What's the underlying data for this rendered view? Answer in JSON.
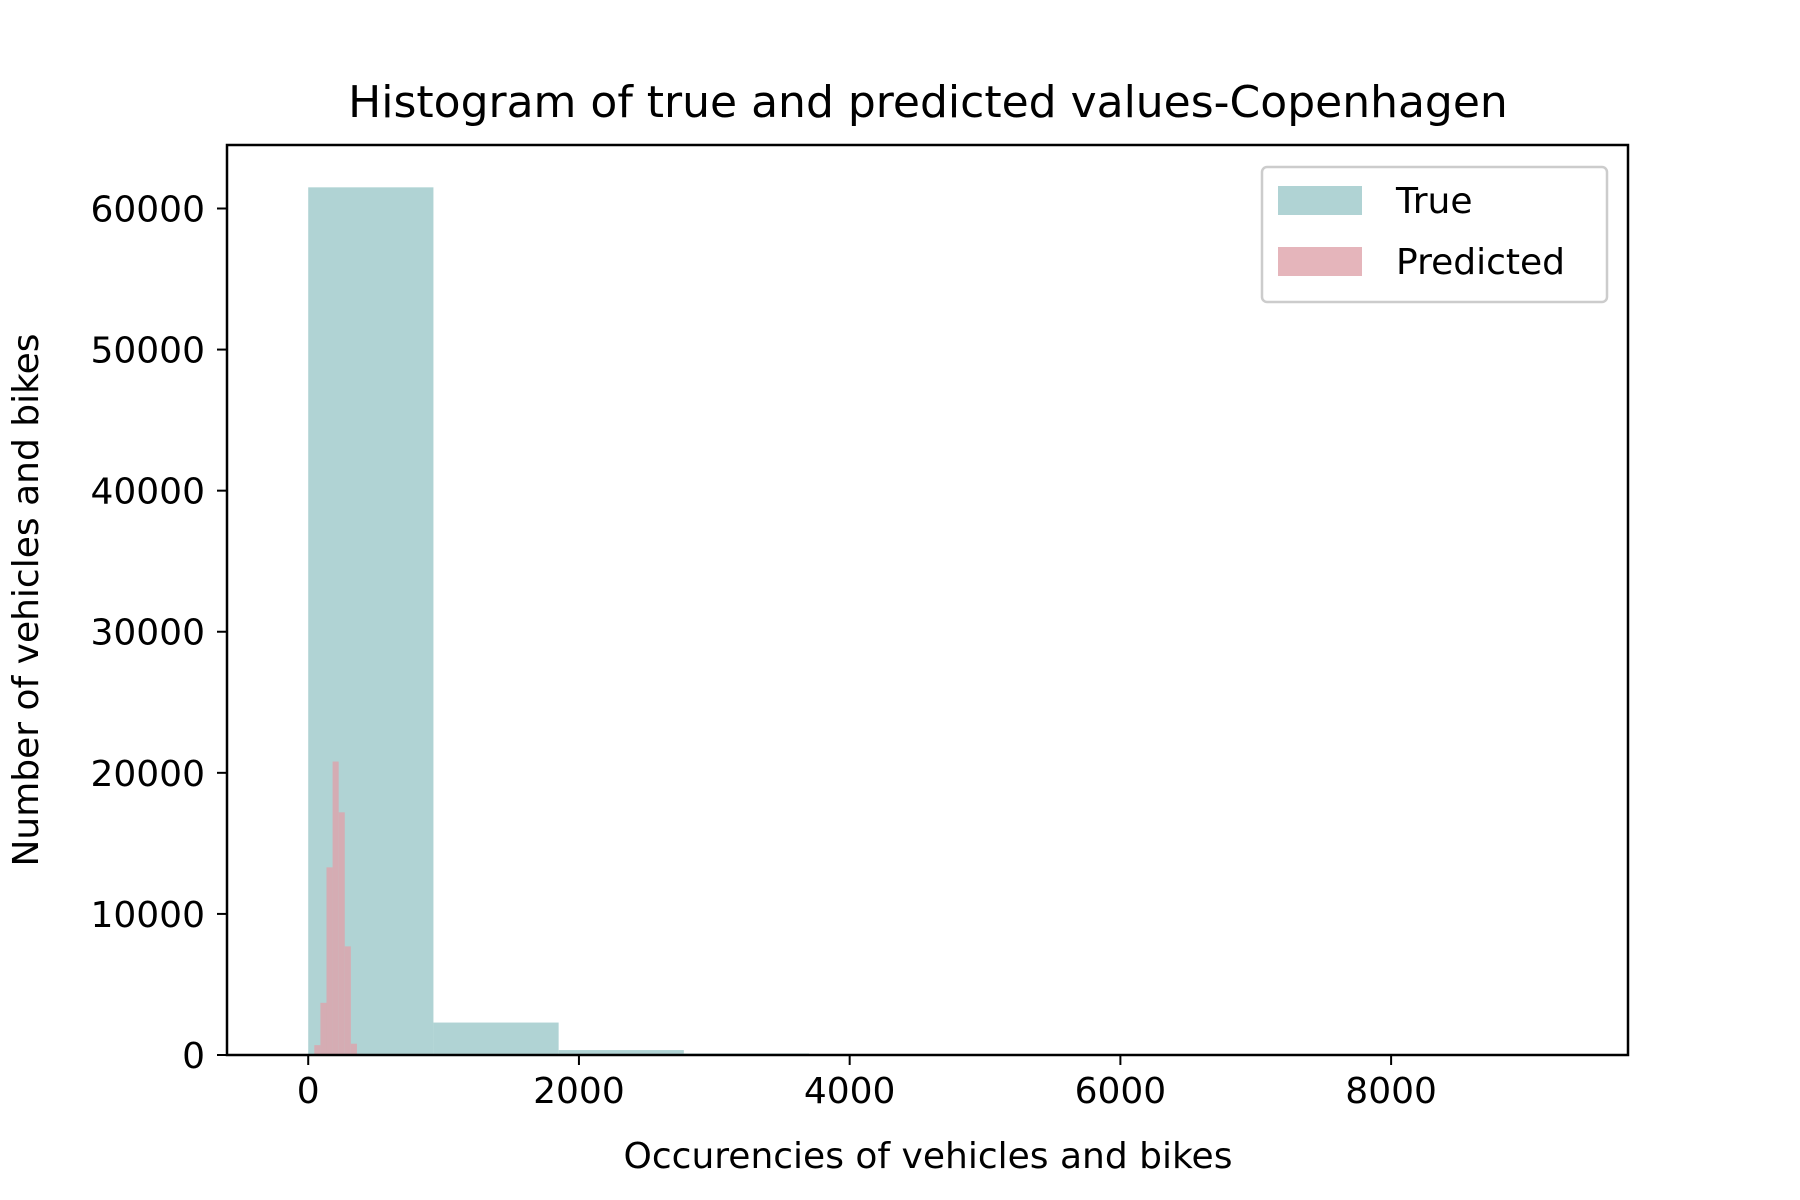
{
  "chart_data": {
    "type": "bar",
    "title": "Histogram of true and predicted values-Copenhagen",
    "xlabel": "Occurencies of vehicles and bikes",
    "ylabel": "Number of vehicles and bikes",
    "xlim": [
      -600,
      9750
    ],
    "ylim": [
      0,
      64500
    ],
    "xticks": [
      0,
      2000,
      4000,
      6000,
      8000
    ],
    "yticks": [
      0,
      10000,
      20000,
      30000,
      40000,
      50000,
      60000
    ],
    "grid": false,
    "legend_position": "top-right",
    "series": [
      {
        "name": "True",
        "color": "#b0d3d4",
        "bins": [
          {
            "x0": 0,
            "x1": 925,
            "count": 61500
          },
          {
            "x0": 925,
            "x1": 1850,
            "count": 2300
          },
          {
            "x0": 1850,
            "x1": 2775,
            "count": 350
          },
          {
            "x0": 2775,
            "x1": 3700,
            "count": 110
          },
          {
            "x0": 3700,
            "x1": 4625,
            "count": 40
          },
          {
            "x0": 4625,
            "x1": 5550,
            "count": 15
          },
          {
            "x0": 5550,
            "x1": 6475,
            "count": 8
          },
          {
            "x0": 6475,
            "x1": 7400,
            "count": 4
          },
          {
            "x0": 7400,
            "x1": 8325,
            "count": 2
          },
          {
            "x0": 8325,
            "x1": 9250,
            "count": 1
          }
        ]
      },
      {
        "name": "Predicted",
        "color": "#dfa2aa",
        "bins": [
          {
            "x0": 45,
            "x1": 90,
            "count": 700
          },
          {
            "x0": 90,
            "x1": 135,
            "count": 3700
          },
          {
            "x0": 135,
            "x1": 180,
            "count": 13300
          },
          {
            "x0": 180,
            "x1": 225,
            "count": 20800
          },
          {
            "x0": 225,
            "x1": 270,
            "count": 17200
          },
          {
            "x0": 270,
            "x1": 315,
            "count": 7700
          },
          {
            "x0": 315,
            "x1": 360,
            "count": 800
          },
          {
            "x0": 360,
            "x1": 405,
            "count": 80
          },
          {
            "x0": 405,
            "x1": 450,
            "count": 10
          }
        ]
      }
    ]
  }
}
